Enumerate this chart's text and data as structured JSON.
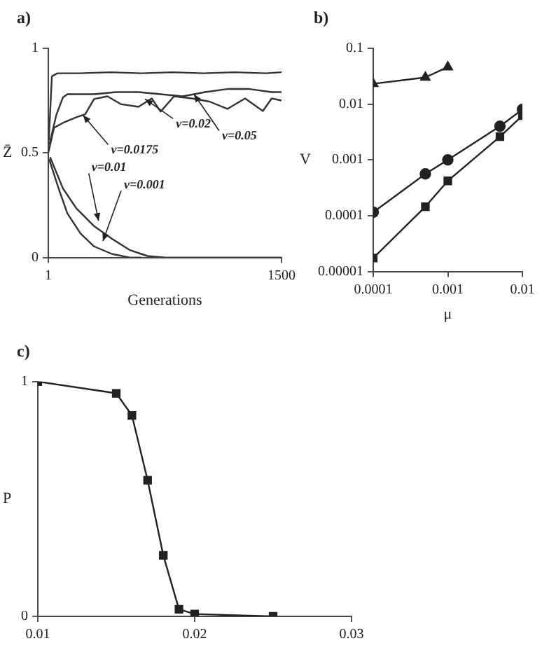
{
  "chart_data": [
    {
      "type": "line",
      "title": "a)",
      "xlabel": "Generations",
      "ylabel": "Z̄",
      "xlim": [
        1,
        1500
      ],
      "ylim": [
        0,
        1
      ],
      "xticks": [
        1,
        1500
      ],
      "yticks": [
        0,
        0.5,
        1
      ],
      "marker": "none",
      "legend": false,
      "grid": false,
      "series": [
        {
          "color": "#333333",
          "x": [
            4,
            24,
            60,
            200,
            400,
            600,
            800,
            1000,
            1200,
            1400,
            1500
          ],
          "values": [
            0.56,
            0.866,
            0.88,
            0.88,
            0.885,
            0.88,
            0.885,
            0.88,
            0.885,
            0.88,
            0.885
          ]
        },
        {
          "color": "#333333",
          "x": [
            8,
            52,
            95,
            124,
            295,
            438,
            581,
            723,
            866,
            1009,
            1152,
            1294,
            1437,
            1500
          ],
          "values": [
            0.54,
            0.68,
            0.765,
            0.78,
            0.78,
            0.79,
            0.79,
            0.78,
            0.77,
            0.79,
            0.805,
            0.805,
            0.79,
            0.79
          ]
        },
        {
          "color": "#333333",
          "x": [
            1,
            38,
            95,
            181,
            238,
            295,
            381,
            466,
            581,
            666,
            723,
            809,
            923,
            1037,
            1152,
            1266,
            1380,
            1437,
            1500
          ],
          "values": [
            0.5,
            0.62,
            0.643,
            0.67,
            0.684,
            0.757,
            0.77,
            0.733,
            0.72,
            0.76,
            0.697,
            0.77,
            0.76,
            0.745,
            0.71,
            0.76,
            0.7,
            0.76,
            0.75
          ]
        },
        {
          "color": "#333333",
          "x": [
            6,
            67,
            124,
            209,
            295,
            409,
            523,
            600
          ],
          "values": [
            0.47,
            0.33,
            0.21,
            0.114,
            0.053,
            0.017,
            0,
            0
          ]
        },
        {
          "color": "#333333",
          "x": [
            12,
            95,
            181,
            295,
            409,
            523,
            638,
            752,
            1500
          ],
          "values": [
            0.48,
            0.33,
            0.235,
            0.15,
            0.09,
            0.036,
            0.007,
            0,
            0
          ]
        }
      ],
      "annotations": [
        {
          "text": "v=0.05",
          "x": 937,
          "y": 0.78
        },
        {
          "text": "v=0.02",
          "x": 623,
          "y": 0.757
        },
        {
          "text": "v=0.0175",
          "x": 224,
          "y": 0.68
        },
        {
          "text": "v=0.01",
          "x": 324,
          "y": 0.175
        },
        {
          "text": "v=0.001",
          "x": 352,
          "y": 0.078
        }
      ]
    },
    {
      "type": "line",
      "title": "b)",
      "xlabel": "μ",
      "ylabel": "V",
      "log": "xy",
      "xlim": [
        0.0001,
        0.01
      ],
      "ylim": [
        1e-05,
        0.1
      ],
      "xticks": [
        0.0001,
        0.001,
        0.01
      ],
      "yticks": [
        {
          "value": 1e-05,
          "label": "0.00001"
        },
        0.0001,
        0.001,
        0.01,
        0.1
      ],
      "legend": false,
      "grid": false,
      "series": [
        {
          "color": "#222222",
          "marker": "triangle",
          "x": [
            0.0001,
            0.0005,
            0.001
          ],
          "values": [
            0.023,
            0.03,
            0.046
          ]
        },
        {
          "color": "#222222",
          "marker": "circle",
          "x": [
            0.0001,
            0.0005,
            0.001,
            0.005,
            0.01
          ],
          "values": [
            0.000115,
            0.00056,
            0.001,
            0.004,
            0.008
          ]
        },
        {
          "color": "#222222",
          "marker": "square",
          "x": [
            0.0001,
            0.0005,
            0.001,
            0.005,
            0.01
          ],
          "values": [
            1.74e-05,
            0.000145,
            0.00042,
            0.0026,
            0.0062
          ]
        }
      ]
    },
    {
      "type": "line",
      "title": "c)",
      "ylabel": "P",
      "xlim": [
        0.01,
        0.03
      ],
      "ylim": [
        0,
        1
      ],
      "xticks": [
        0.01,
        0.02,
        0.03
      ],
      "yticks": [
        0,
        1
      ],
      "marker": "square",
      "legend": false,
      "grid": false,
      "x": [
        0.01,
        0.015,
        0.016,
        0.017,
        0.018,
        0.019,
        0.02,
        0.025
      ],
      "series": [
        {
          "color": "#222222",
          "values": [
            1,
            0.95,
            0.856,
            0.58,
            0.26,
            0.03,
            0.01,
            0
          ]
        }
      ]
    }
  ]
}
